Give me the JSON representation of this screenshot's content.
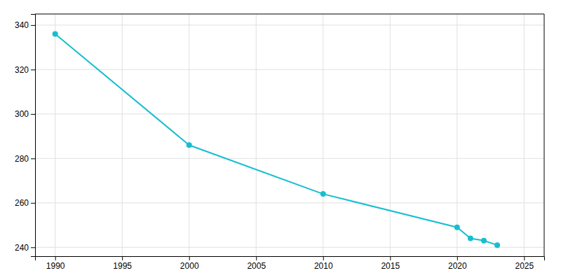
{
  "chart_data": {
    "type": "line",
    "x": [
      1990,
      2000,
      2010,
      2020,
      2021,
      2022,
      2023
    ],
    "values": [
      336,
      286,
      264,
      249,
      244,
      243,
      241
    ],
    "color": "#17BECF",
    "marker": "circle",
    "xlim": [
      1988.5,
      2026.5
    ],
    "ylim": [
      236,
      345
    ],
    "xticks": [
      1990,
      1995,
      2000,
      2005,
      2010,
      2015,
      2020,
      2025
    ],
    "yticks": [
      240,
      260,
      280,
      300,
      320,
      340
    ],
    "grid": true
  }
}
